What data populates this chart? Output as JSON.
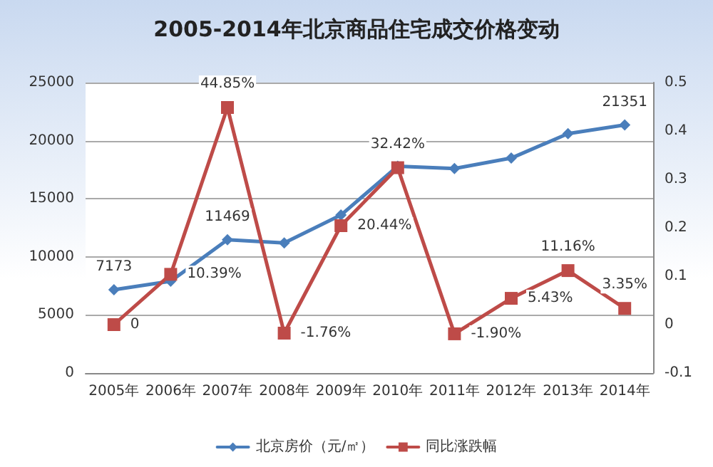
{
  "chart_data": {
    "type": "line",
    "title": "2005-2014年北京商品住宅成交价格变动",
    "categories": [
      "2005年",
      "2006年",
      "2007年",
      "2008年",
      "2009年",
      "2010年",
      "2011年",
      "2012年",
      "2013年",
      "2014年"
    ],
    "series": [
      {
        "name": "北京房价（元/㎡）",
        "color": "#4a7ebb",
        "marker": "diamond",
        "values": [
          7173,
          7900,
          11469,
          11200,
          13600,
          17800,
          17600,
          18500,
          20600,
          21351
        ],
        "value_labels": [
          "7173",
          null,
          "11469",
          null,
          null,
          null,
          null,
          null,
          null,
          "21351"
        ]
      },
      {
        "name": "同比涨跌幅",
        "color": "#be4b48",
        "marker": "square",
        "axis": "y2",
        "values": [
          0,
          0.1039,
          0.4485,
          -0.0176,
          0.2044,
          0.3242,
          -0.019,
          0.0543,
          0.1116,
          0.0335
        ],
        "value_labels": [
          "0",
          "10.39%",
          "44.85%",
          "-1.76%",
          "20.44%",
          "32.42%",
          "-1.90%",
          "5.43%",
          "11.16%",
          "3.35%"
        ]
      }
    ],
    "ylim": [
      0,
      25000
    ],
    "yticks": [
      0,
      5000,
      10000,
      15000,
      20000,
      25000
    ],
    "y2lim": [
      -0.1,
      0.5
    ],
    "y2ticks": [
      -0.1,
      0,
      0.1,
      0.2,
      0.3,
      0.4,
      0.5
    ],
    "grid": "y",
    "legend": "bottom",
    "line_style": "solid"
  }
}
